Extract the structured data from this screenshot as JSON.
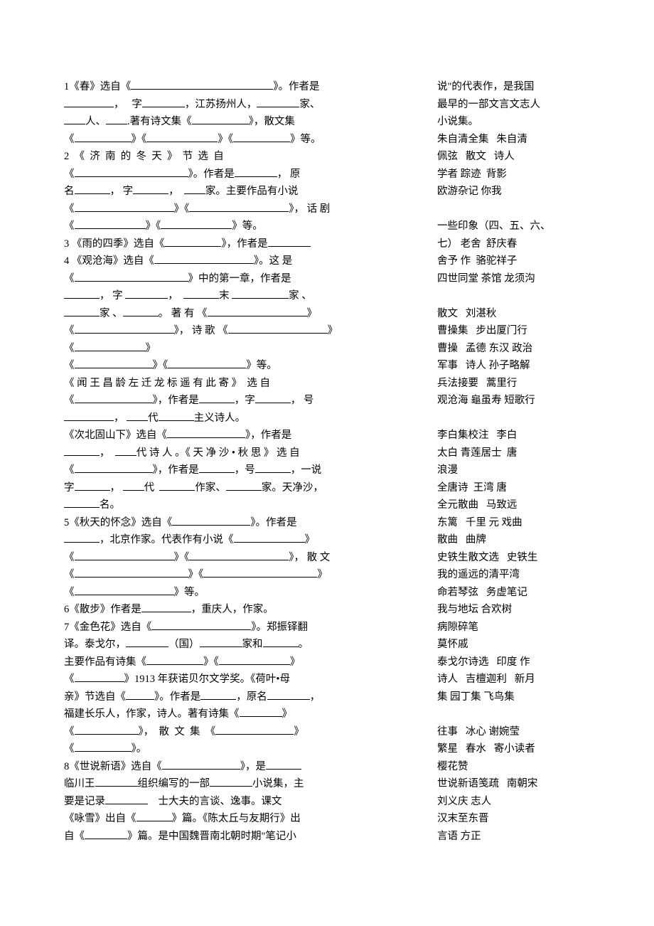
{
  "left": {
    "l1a": "1《春》选自《",
    "l1b": "》。作者是",
    "l2a": "，   字",
    "l2b": "，江苏扬州人，",
    "l2c": "家、",
    "l3a": "人、",
    "l3b": ".著有诗文集《",
    "l3c": "》，散文集",
    "l4a": "《",
    "l4b": "》《",
    "l4c": "》《",
    "l4d": "》等。",
    "l5a": "2  《  济  南  的  冬  天  》  节  选  自",
    "l6a": "《",
    "l6b": "》。作者是",
    "l6c": "， 原",
    "l7a": "名",
    "l7b": "， 字",
    "l7c": "，  ",
    "l7d": "家。主要作品有小说",
    "l8a": "《",
    "l8b": "》《",
    "l8c": "》， 话 剧",
    "l9a": "《",
    "l9b": "》《",
    "l9c": "》等。",
    "l10a": "3 《雨的四季》选自《",
    "l10b": "》，作者是",
    "l11a": "4 《观沧海》选自《",
    "l11b": "》。这 是",
    "l12a": "《",
    "l12b": "》中的第一章，作者是",
    "l13a": "， 字 ",
    "l13b": "，  ",
    "l13c": "末 ",
    "l13d": "家 、",
    "l14a": "家 、",
    "l14b": "。 著 有 《",
    "l14c": "》",
    "l15a": "《",
    "l15b": "》， 诗 歌 《",
    "l15c": "》",
    "l16a": "《",
    "l16b": "》",
    "l17a": "《",
    "l17b": "》《",
    "l17c": "》等。",
    "l18a": "《 闻 王 昌 龄 左 迁 龙 标 遥 有 此 寄 》  选 自",
    "l19a": "《",
    "l19b": "》，作者是",
    "l19c": "，字",
    "l19d": "， 号",
    "l20a": "， ",
    "l20b": "代",
    "l20c": "主义诗人。",
    "l21a": "《次北固山下》选自《",
    "l21b": "》，作者是",
    "l22a": "，  ",
    "l22b": "代 诗 人 。《 天 净 沙 • 秋 思 》 选 自",
    "l23a": "《",
    "l23b": "》，作者是",
    "l23c": "，号",
    "l23d": "，一说",
    "l24a": "字",
    "l24b": "， ",
    "l24c": "代  ",
    "l24d": "作家、",
    "l24e": "家。天净沙，",
    "l25a": "名。",
    "l26a": "5《秋天的怀念》选自《",
    "l26b": "》。作者是",
    "l27a": "，北京作家。代表作有小说《",
    "l27b": "》",
    "l28a": "《",
    "l28b": "》《",
    "l28c": "》， 散 文",
    "l29a": "《",
    "l29b": "》《",
    "l29c": "》",
    "l30a": "《",
    "l30b": "》等。",
    "l31a": "6《散步》作者是",
    "l31b": "，重庆人，作家。",
    "l32a": "7《金色花》选自《",
    "l32b": "》。郑振铎翻",
    "l33a": "译。泰戈尔，",
    "l33b": "（国）",
    "l33c": "家和",
    "l33d": "。",
    "l34a": "主要作品有诗集《",
    "l34b": "》《",
    "l34c": "》",
    "l35a": "《",
    "l35b": "》1913 年获诺贝尔文学奖。《荷叶•母",
    "l36a": "亲》节选自《",
    "l36b": "》。作者是",
    "l36c": "，原名",
    "l36d": "，",
    "l37a": "福建长乐人，作家，诗人。著有诗集《",
    "l37b": "》",
    "l38a": "《",
    "l38b": "》，  散  文  集  《",
    "l38c": "》",
    "l39a": "《",
    "l39b": "》。",
    "l40a": "8《世说新语》选自《",
    "l40b": "》，是",
    "l41a": "临川王",
    "l41b": "组织编写的一部",
    "l41c": "小说集，主",
    "l42a": "要是记录",
    "l42b": "    士大夫的言谈、逸事。课文",
    "l43a": "《咏雪》出自《",
    "l43b": "》篇。《陈太丘与友期行》出",
    "l44a": "自《",
    "l44b": "》篇。是中国魏晋南北朝时期\"笔记小"
  },
  "right": {
    "r1": "说\"的代表作，是我国",
    "r2": "最早的一部文言文志人",
    "r3": "小说集。",
    "r4": "朱自清全集   朱自清",
    "r5": "佩弦   散文   诗人",
    "r6": "学者 踪迹  背影 ",
    "r7": "欧游杂记 你我",
    "r8": "",
    "r9": "一些印象（四、五、六、",
    "r10": "七） 老舍  舒庆春",
    "r11": "舍予 作  骆驼祥子",
    "r12": "四世同堂 茶馆 龙须沟",
    "r13": "",
    "r14": "散文   刘湛秋",
    "r15": "曹操集   步出厦门行",
    "r16": "曹操   孟德 东汉 政治",
    "r17": "军事   诗人 孙子略解",
    "r18": "兵法接要   蒿里行",
    "r19": "观沧海 龜虽寿 短歌行",
    "r20": "",
    "r21": "李白集校注   李白",
    "r22": "太白 青莲居士  唐",
    "r23": "浪漫",
    "r24": "全唐诗  王湾 唐",
    "r25": "全元散曲   马致远",
    "r26": "东篱   千里 元 戏曲",
    "r27": "散曲   曲牌",
    "r28": "史铁生散文选   史铁生",
    "r29": "我的遥远的清平湾",
    "r30": "命若琴弦   务虚笔记",
    "r31": "我与地坛 合欢树",
    "r32": "病隙碎笔",
    "r33": "莫怀戚",
    "r34": "泰戈尔诗选   印度 作",
    "r35": "诗人   吉檀迦利   新月",
    "r36": "集 园丁集 飞鸟集",
    "r37": "",
    "r38": "往事   冰心 谢婉莹",
    "r39": "繁星   春水   寄小读者",
    "r40": "樱花赞",
    "r41": "世说新语笺疏   南朝宋",
    "r42": "刘义庆 志人",
    "r43": "汉末至东晋",
    "r44": "言语 方正"
  }
}
